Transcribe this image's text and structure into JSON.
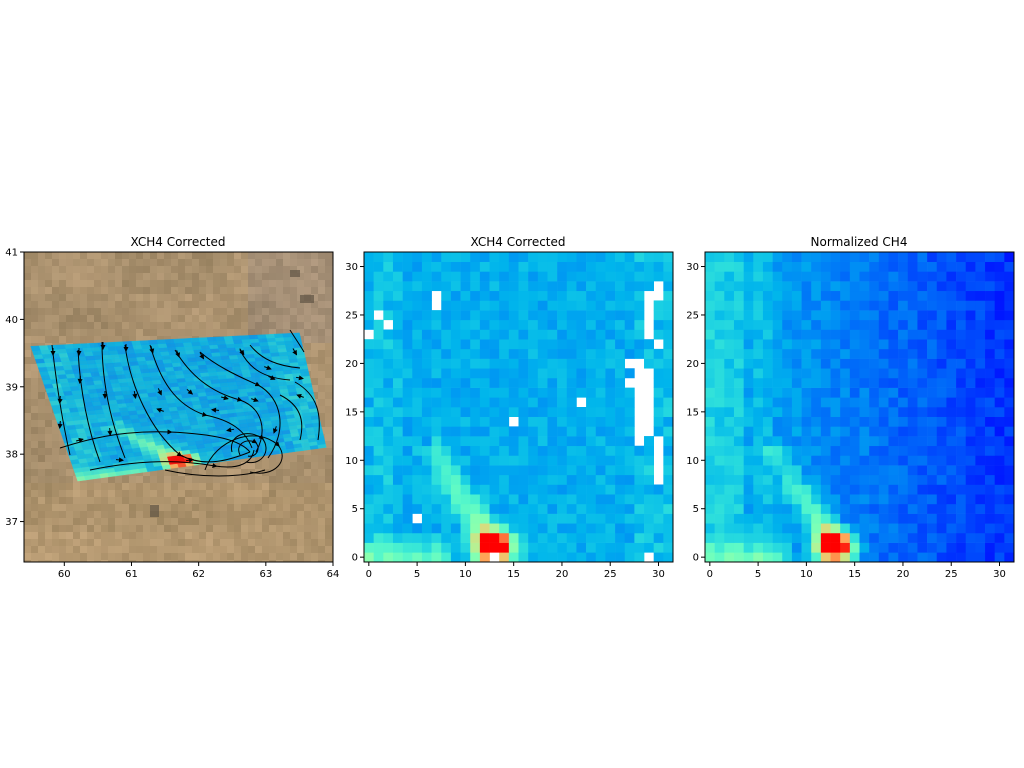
{
  "chart_data": [
    {
      "type": "heatmap",
      "title": "XCH4 Corrected",
      "background": "satellite-imagery",
      "overlay": "wind-streamlines",
      "xlim": [
        59.4,
        64
      ],
      "ylim": [
        36.4,
        41
      ],
      "xticks": [
        "60",
        "61",
        "62",
        "63",
        "64"
      ],
      "yticks": [
        "37",
        "38",
        "39",
        "40",
        "41"
      ],
      "swath_corners_lonlat": [
        [
          59.5,
          39.6
        ],
        [
          63.5,
          39.8
        ],
        [
          63.9,
          38.1
        ],
        [
          60.2,
          37.6
        ]
      ],
      "grid_size": [
        32,
        32
      ],
      "plume": {
        "source_col": 13,
        "source_row": 1,
        "intensity": 1.0
      },
      "colormap": "rainbow"
    },
    {
      "type": "heatmap",
      "title": "XCH4 Corrected",
      "grid_size": [
        32,
        32
      ],
      "xlim": [
        -0.5,
        31.5
      ],
      "ylim": [
        -0.5,
        31.5
      ],
      "xticks": [
        "0",
        "5",
        "10",
        "15",
        "20",
        "25",
        "30"
      ],
      "yticks": [
        "0",
        "5",
        "10",
        "15",
        "20",
        "25",
        "30"
      ],
      "missing_cells": [
        [
          7,
          26
        ],
        [
          7,
          27
        ],
        [
          1,
          25
        ],
        [
          2,
          24
        ],
        [
          0,
          23
        ],
        [
          29,
          23
        ],
        [
          29,
          24
        ],
        [
          29,
          25
        ],
        [
          29,
          26
        ],
        [
          29,
          27
        ],
        [
          30,
          22
        ],
        [
          30,
          28
        ],
        [
          30,
          27
        ],
        [
          27,
          20
        ],
        [
          28,
          20
        ],
        [
          29,
          19
        ],
        [
          28,
          19
        ],
        [
          27,
          18
        ],
        [
          28,
          18
        ],
        [
          29,
          18
        ],
        [
          28,
          17
        ],
        [
          29,
          17
        ],
        [
          28,
          16
        ],
        [
          29,
          16
        ],
        [
          28,
          15
        ],
        [
          29,
          15
        ],
        [
          28,
          14
        ],
        [
          29,
          14
        ],
        [
          28,
          13
        ],
        [
          29,
          13
        ],
        [
          28,
          12
        ],
        [
          30,
          12
        ],
        [
          30,
          11
        ],
        [
          30,
          10
        ],
        [
          30,
          9
        ],
        [
          30,
          8
        ],
        [
          22,
          16
        ],
        [
          15,
          14
        ],
        [
          5,
          4
        ],
        [
          13,
          0
        ],
        [
          29,
          0
        ]
      ],
      "plume": {
        "source_col": 13,
        "source_row": 1,
        "intensity": 1.0
      },
      "colormap": "rainbow"
    },
    {
      "type": "heatmap",
      "title": "Normalized CH4",
      "grid_size": [
        32,
        32
      ],
      "xlim": [
        -0.5,
        31.5
      ],
      "ylim": [
        -0.5,
        31.5
      ],
      "xticks": [
        "0",
        "5",
        "10",
        "15",
        "20",
        "25",
        "30"
      ],
      "yticks": [
        "0",
        "5",
        "10",
        "15",
        "20",
        "25",
        "30"
      ],
      "plume": {
        "source_col": 13,
        "source_row": 1,
        "intensity": 1.0
      },
      "colormap": "rainbow"
    }
  ]
}
